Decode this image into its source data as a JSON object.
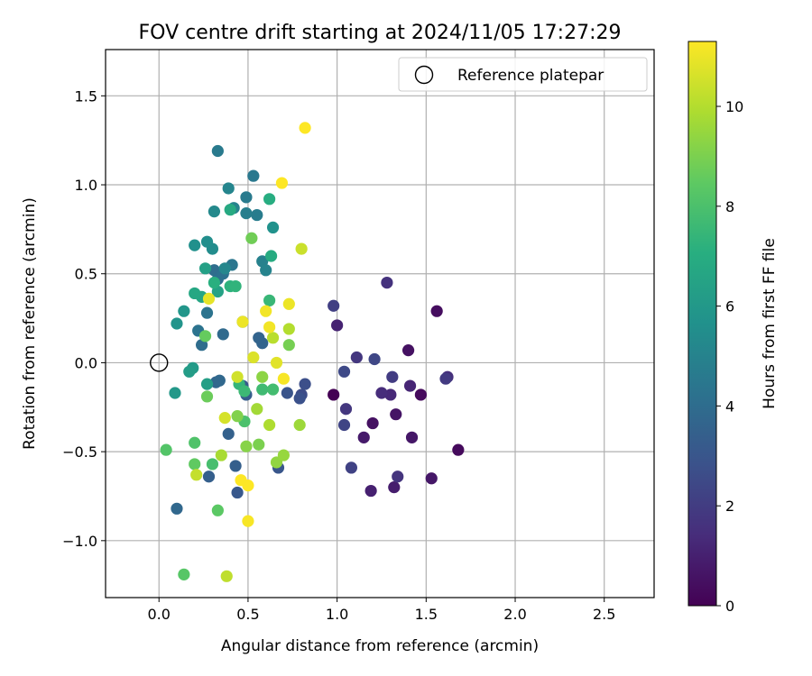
{
  "chart_data": {
    "type": "scatter",
    "title": "FOV centre drift starting at 2024/11/05 17:27:29",
    "xlabel": "Angular distance from reference (arcmin)",
    "ylabel": "Rotation from reference (arcmin)",
    "xlim": [
      -0.3,
      2.78
    ],
    "ylim": [
      -1.32,
      1.76
    ],
    "xticks": [
      0.0,
      0.5,
      1.0,
      1.5,
      2.0,
      2.5
    ],
    "xtick_labels": [
      "0.0",
      "0.5",
      "1.0",
      "1.5",
      "2.0",
      "2.5"
    ],
    "yticks": [
      -1.0,
      -0.5,
      0.0,
      0.5,
      1.0,
      1.5
    ],
    "ytick_labels": [
      "−1.0",
      "−0.5",
      "0.0",
      "0.5",
      "1.0",
      "1.5"
    ],
    "grid": true,
    "legend": {
      "placement": "top-right",
      "entries": [
        "Reference platepar"
      ]
    },
    "reference_point": {
      "x": 0.0,
      "y": 0.0
    },
    "colorbar": {
      "label": "Hours from first FF file",
      "colormap": "viridis",
      "range": [
        0,
        11.3
      ],
      "ticks": [
        0,
        2,
        4,
        6,
        8,
        10
      ],
      "tick_labels": [
        "0",
        "2",
        "4",
        "6",
        "8",
        "10"
      ]
    },
    "series": [
      {
        "points": [
          [
            0.98,
            -0.18,
            0.0
          ],
          [
            1.68,
            -0.49,
            0.3
          ],
          [
            1.47,
            -0.18,
            0.3
          ],
          [
            1.56,
            0.29,
            0.4
          ],
          [
            1.4,
            0.07,
            0.5
          ],
          [
            1.2,
            -0.34,
            0.5
          ],
          [
            1.33,
            -0.29,
            0.6
          ],
          [
            1.42,
            -0.42,
            0.7
          ],
          [
            1.53,
            -0.65,
            0.7
          ],
          [
            1.15,
            -0.42,
            0.8
          ],
          [
            1.32,
            -0.7,
            0.9
          ],
          [
            1.19,
            -0.72,
            1.0
          ],
          [
            1.0,
            0.21,
            1.1
          ],
          [
            1.41,
            -0.13,
            1.2
          ],
          [
            1.3,
            -0.18,
            1.3
          ],
          [
            1.25,
            -0.17,
            1.4
          ],
          [
            1.62,
            -0.08,
            1.5
          ],
          [
            1.28,
            0.45,
            1.6
          ],
          [
            1.34,
            -0.64,
            1.7
          ],
          [
            1.11,
            0.03,
            1.8
          ],
          [
            1.05,
            -0.26,
            1.8
          ],
          [
            1.61,
            -0.09,
            1.9
          ],
          [
            1.31,
            -0.08,
            2.0
          ],
          [
            0.98,
            0.32,
            2.1
          ],
          [
            1.08,
            -0.59,
            2.2
          ],
          [
            1.04,
            -0.35,
            2.3
          ],
          [
            1.21,
            0.02,
            2.4
          ],
          [
            1.04,
            -0.05,
            2.5
          ],
          [
            0.8,
            -0.18,
            2.6
          ],
          [
            0.82,
            -0.12,
            2.7
          ],
          [
            0.79,
            -0.2,
            2.8
          ],
          [
            0.72,
            -0.17,
            2.9
          ],
          [
            0.67,
            -0.59,
            3.0
          ],
          [
            0.44,
            -0.73,
            3.1
          ],
          [
            0.47,
            -0.13,
            3.2
          ],
          [
            0.49,
            -0.18,
            3.3
          ],
          [
            0.28,
            -0.64,
            3.4
          ],
          [
            0.43,
            -0.58,
            3.4
          ],
          [
            0.39,
            -0.4,
            3.5
          ],
          [
            0.58,
            0.11,
            3.6
          ],
          [
            0.56,
            0.14,
            3.6
          ],
          [
            0.32,
            -0.11,
            3.7
          ],
          [
            0.34,
            -0.1,
            3.8
          ],
          [
            0.1,
            -0.82,
            3.8
          ],
          [
            0.36,
            0.16,
            3.9
          ],
          [
            0.24,
            0.1,
            4.0
          ],
          [
            0.31,
            0.52,
            4.0
          ],
          [
            0.33,
            0.47,
            4.1
          ],
          [
            0.36,
            0.5,
            4.2
          ],
          [
            0.27,
            0.28,
            4.3
          ],
          [
            0.22,
            0.18,
            4.3
          ],
          [
            0.41,
            0.55,
            4.4
          ],
          [
            0.47,
            0.23,
            4.4
          ],
          [
            0.53,
            1.05,
            4.5
          ],
          [
            0.49,
            0.93,
            4.6
          ],
          [
            0.33,
            1.19,
            4.6
          ],
          [
            0.55,
            0.83,
            4.7
          ],
          [
            0.49,
            0.84,
            4.8
          ],
          [
            0.58,
            0.57,
            4.9
          ],
          [
            0.6,
            0.52,
            5.0
          ],
          [
            0.42,
            0.87,
            5.0
          ],
          [
            0.39,
            0.98,
            5.1
          ],
          [
            0.37,
            0.53,
            5.2
          ],
          [
            0.31,
            0.85,
            5.3
          ],
          [
            0.3,
            0.64,
            5.4
          ],
          [
            0.27,
            0.68,
            5.5
          ],
          [
            0.2,
            0.66,
            5.6
          ],
          [
            0.64,
            0.76,
            5.7
          ],
          [
            0.1,
            0.22,
            5.8
          ],
          [
            0.14,
            0.29,
            5.9
          ],
          [
            0.09,
            -0.17,
            6.0
          ],
          [
            0.19,
            -0.03,
            6.1
          ],
          [
            0.17,
            -0.05,
            6.2
          ],
          [
            0.27,
            -0.12,
            6.3
          ],
          [
            0.26,
            0.53,
            6.4
          ],
          [
            0.33,
            0.4,
            6.5
          ],
          [
            0.24,
            0.37,
            6.6
          ],
          [
            0.2,
            0.39,
            6.7
          ],
          [
            0.4,
            0.86,
            6.8
          ],
          [
            0.63,
            0.6,
            6.9
          ],
          [
            0.62,
            0.92,
            7.0
          ],
          [
            0.31,
            0.45,
            7.1
          ],
          [
            0.4,
            0.43,
            7.2
          ],
          [
            0.43,
            0.43,
            7.3
          ],
          [
            0.45,
            -0.12,
            7.4
          ],
          [
            0.62,
            0.35,
            7.5
          ],
          [
            0.48,
            -0.16,
            7.6
          ],
          [
            0.58,
            -0.15,
            7.7
          ],
          [
            0.64,
            -0.15,
            7.8
          ],
          [
            0.3,
            -0.57,
            7.9
          ],
          [
            0.48,
            -0.33,
            8.0
          ],
          [
            0.2,
            -0.45,
            8.1
          ],
          [
            0.04,
            -0.49,
            8.2
          ],
          [
            0.14,
            -1.19,
            8.3
          ],
          [
            0.33,
            -0.83,
            8.4
          ],
          [
            0.2,
            -0.57,
            8.5
          ],
          [
            0.26,
            0.15,
            8.6
          ],
          [
            0.27,
            -0.19,
            8.7
          ],
          [
            0.52,
            0.7,
            8.8
          ],
          [
            0.73,
            0.1,
            8.9
          ],
          [
            0.56,
            -0.46,
            9.0
          ],
          [
            0.44,
            -0.3,
            9.1
          ],
          [
            0.49,
            -0.47,
            9.2
          ],
          [
            0.58,
            -0.08,
            9.3
          ],
          [
            0.66,
            -0.56,
            9.4
          ],
          [
            0.7,
            -0.52,
            9.5
          ],
          [
            0.79,
            -0.35,
            9.6
          ],
          [
            0.55,
            -0.26,
            9.7
          ],
          [
            0.35,
            -0.52,
            9.8
          ],
          [
            0.62,
            -0.35,
            9.9
          ],
          [
            0.73,
            0.19,
            10.0
          ],
          [
            0.64,
            0.14,
            10.1
          ],
          [
            0.38,
            -1.2,
            10.2
          ],
          [
            0.21,
            -0.63,
            10.3
          ],
          [
            0.8,
            0.64,
            10.4
          ],
          [
            0.44,
            -0.08,
            10.5
          ],
          [
            0.37,
            -0.31,
            10.6
          ],
          [
            0.53,
            0.03,
            10.7
          ],
          [
            0.66,
            0.0,
            10.8
          ],
          [
            0.28,
            0.36,
            10.9
          ],
          [
            0.47,
            0.23,
            11.0
          ],
          [
            0.73,
            0.33,
            11.0
          ],
          [
            0.62,
            0.2,
            11.1
          ],
          [
            0.6,
            0.29,
            11.1
          ],
          [
            0.5,
            -0.89,
            11.2
          ],
          [
            0.7,
            -0.09,
            11.2
          ],
          [
            0.46,
            -0.66,
            11.3
          ],
          [
            0.5,
            -0.69,
            11.3
          ],
          [
            0.69,
            1.01,
            11.3
          ],
          [
            0.82,
            1.32,
            11.3
          ]
        ]
      }
    ]
  }
}
